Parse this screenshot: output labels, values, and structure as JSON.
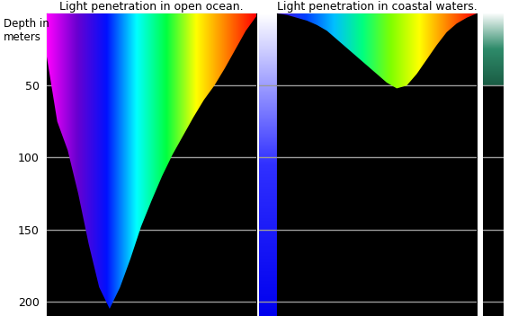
{
  "chart_data": [
    {
      "type": "area",
      "title": "Light penetration in open ocean.",
      "ylabel": "Depth in\nmeters",
      "x": [
        0,
        0.05,
        0.1,
        0.15,
        0.2,
        0.25,
        0.3,
        0.35,
        0.4,
        0.45,
        0.5,
        0.55,
        0.6,
        0.65,
        0.7,
        0.75,
        0.8,
        0.85,
        0.9,
        0.95,
        1
      ],
      "values": [
        30,
        75,
        95,
        125,
        160,
        190,
        205,
        190,
        170,
        148,
        130,
        113,
        98,
        85,
        72,
        60,
        50,
        38,
        25,
        12,
        2
      ],
      "xlim": [
        0,
        1
      ],
      "ylim": [
        210,
        0
      ],
      "yticks": [
        50,
        100,
        150,
        200
      ],
      "grid": true,
      "tick_labels": "y",
      "colors": [
        "#ff00ff",
        "#6a00d0",
        "#0010ff",
        "#00ffff",
        "#00ff40",
        "#ffff00",
        "#ff8000",
        "#ff0000"
      ],
      "water_column": {
        "depth": 210,
        "colors": [
          "#ffffff",
          "#3030ff",
          "#0000ee"
        ]
      }
    },
    {
      "type": "area",
      "title": "Light penetration in coastal waters.",
      "x": [
        0,
        0.05,
        0.1,
        0.15,
        0.2,
        0.25,
        0.3,
        0.35,
        0.4,
        0.45,
        0.5,
        0.55,
        0.6,
        0.65,
        0.7,
        0.75,
        0.8,
        0.85,
        0.9,
        0.95,
        1
      ],
      "values": [
        0,
        1,
        3,
        5,
        8,
        12,
        18,
        24,
        30,
        36,
        42,
        48,
        52,
        50,
        42,
        32,
        22,
        13,
        7,
        3,
        0
      ],
      "xlim": [
        0,
        1
      ],
      "ylim": [
        210,
        0
      ],
      "yticks": [
        50,
        100,
        150,
        200
      ],
      "grid": true,
      "tick_labels": false,
      "colors": [
        "#5010e0",
        "#0040ff",
        "#00c0ff",
        "#00ff80",
        "#80ff00",
        "#ffff00",
        "#ff8000",
        "#ff0000"
      ],
      "water_column": {
        "depth": 50,
        "colors": [
          "#ffffff",
          "#2e8b6a",
          "#1a5c44"
        ]
      }
    }
  ]
}
